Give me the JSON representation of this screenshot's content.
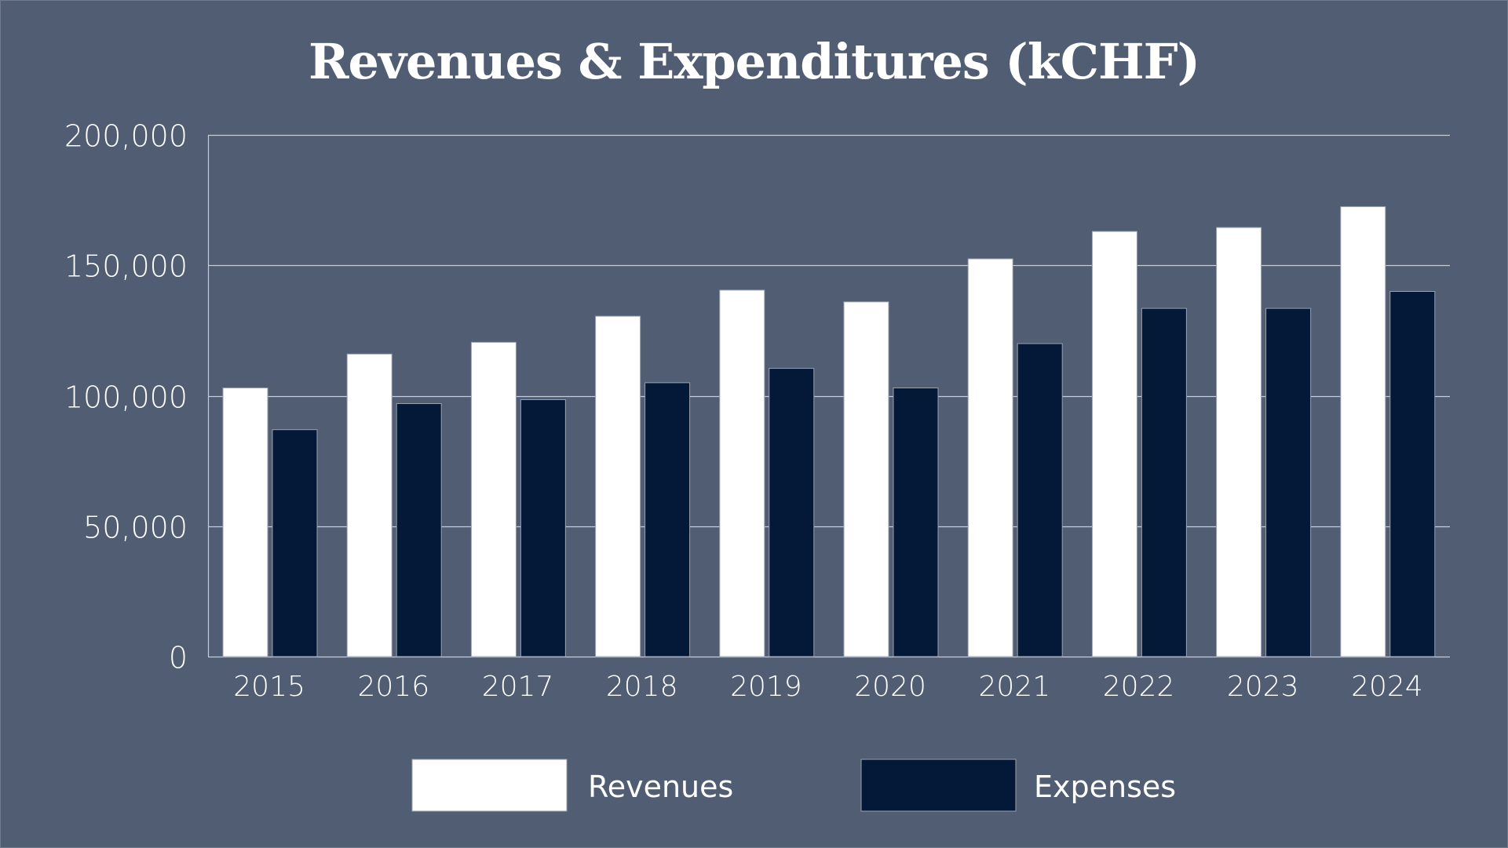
{
  "chart_data": {
    "type": "bar",
    "title": "Revenues & Expenditures (kCHF)",
    "xlabel": "",
    "ylabel": "",
    "categories": [
      "2015",
      "2016",
      "2017",
      "2018",
      "2019",
      "2020",
      "2021",
      "2022",
      "2023",
      "2024"
    ],
    "series": [
      {
        "name": "Revenues",
        "color": "#ffffff",
        "values": [
          103000,
          116000,
          120500,
          130500,
          140500,
          136000,
          152500,
          163000,
          164500,
          172500
        ]
      },
      {
        "name": "Expenses",
        "color": "#041838",
        "values": [
          87000,
          97000,
          98500,
          105000,
          110500,
          103000,
          120000,
          133500,
          133500,
          140000
        ]
      }
    ],
    "ylim": [
      0,
      200000
    ],
    "yticks": [
      0,
      50000,
      100000,
      150000,
      200000
    ],
    "ytick_labels": [
      "0",
      "50,000",
      "100,000",
      "150,000",
      "200,000"
    ],
    "grid": true,
    "legend": "bottom-center",
    "background": "#505d73",
    "gridline_color": "#c8ccd4"
  }
}
